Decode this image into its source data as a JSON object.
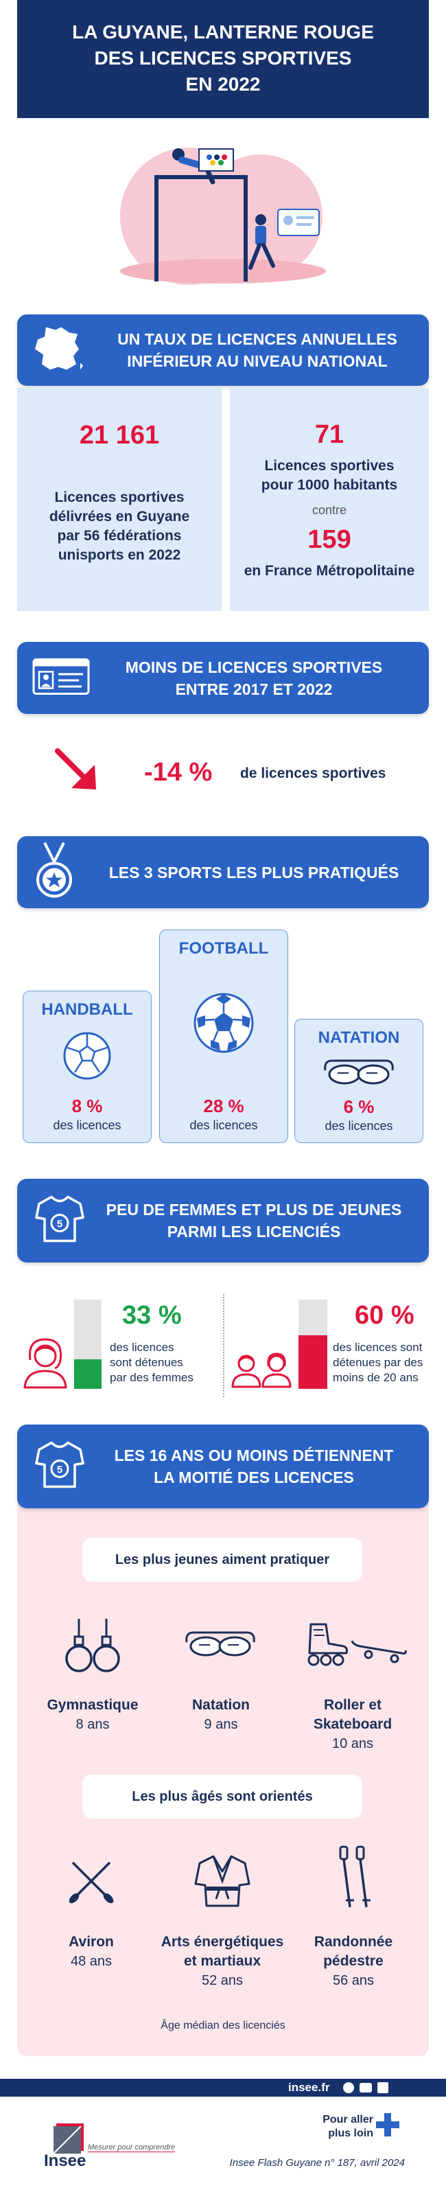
{
  "title": {
    "line1": "LA GUYANE, LANTERNE ROUGE",
    "line2": "DES LICENCES SPORTIVES",
    "line3": "EN 2022"
  },
  "section1": {
    "heading_line1": "UN TAUX DE LICENCES ANNUELLES",
    "heading_line2": "INFÉRIEUR AU NIVEAU NATIONAL",
    "left_number": "21 161",
    "left_text_line1": "Licences sportives",
    "left_text_line2": "délivrées en Guyane",
    "left_text_line3": "par 56 fédérations",
    "left_text_line4": "unisports en 2022",
    "right_number": "71",
    "right_text_line1": "Licences sportives",
    "right_text_line2": "pour 1000 habitants",
    "contre": "contre",
    "right_number2": "159",
    "right_text2": "en France Métropolitaine"
  },
  "section2": {
    "heading_line1": "MOINS DE LICENCES SPORTIVES",
    "heading_line2": "ENTRE 2017 ET 2022",
    "change_value": "-14 %",
    "change_text": "de licences sportives"
  },
  "section3": {
    "heading": "LES 3 SPORTS LES PLUS PRATIQUÉS",
    "sports": [
      {
        "name": "HANDBALL",
        "pct": "8 %",
        "sub": "des licences"
      },
      {
        "name": "FOOTBALL",
        "pct": "28 %",
        "sub": "des licences"
      },
      {
        "name": "NATATION",
        "pct": "6 %",
        "sub": "des licences"
      }
    ]
  },
  "section4": {
    "heading_line1": "PEU DE FEMMES ET PLUS DE JEUNES",
    "heading_line2": "PARMI LES LICENCIÉS",
    "women_pct": "33 %",
    "women_share": 0.33,
    "women_text_line1": "des licences",
    "women_text_line2": "sont détenues",
    "women_text_line3": "par des femmes",
    "young_pct": "60 %",
    "young_share": 0.6,
    "young_text_line1": "des licences sont",
    "young_text_line2": "détenues par des",
    "young_text_line3": "moins de 20 ans",
    "color_green": "#1ba24a",
    "color_red": "#e0143c"
  },
  "section5": {
    "heading_line1": "LES 16 ANS OU MOINS DÉTIENNENT",
    "heading_line2": "LA MOITIÉ DES LICENCES",
    "young_pill": "Les plus jeunes aiment pratiquer",
    "young_sports": [
      {
        "name_line1": "Gymnastique",
        "name_line2": "",
        "age": "8 ans"
      },
      {
        "name_line1": "Natation",
        "name_line2": "",
        "age": "9 ans"
      },
      {
        "name_line1": "Roller et",
        "name_line2": "Skateboard",
        "age": "10 ans"
      }
    ],
    "old_pill": "Les plus âgés sont orientés",
    "old_sports": [
      {
        "name_line1": "Aviron",
        "name_line2": "",
        "age": "48 ans"
      },
      {
        "name_line1": "Arts énergétiques",
        "name_line2": "et martiaux",
        "age": "52 ans"
      },
      {
        "name_line1": "Randonnée",
        "name_line2": "pédestre",
        "age": "56 ans"
      }
    ],
    "footnote": "Âge médian des licenciés"
  },
  "footer": {
    "site": "insee.fr",
    "logo_text": "Insee",
    "tagline": "Mesurer pour comprendre",
    "more_line1": "Pour aller",
    "more_line2": "plus loin",
    "publication": "Insee Flash Guyane n° 187, avril 2024"
  },
  "colors": {
    "banner_blue": "#2a63c4",
    "navy": "#17316b",
    "light_blue": "#ddeafa",
    "pink_panel": "#fde6ea",
    "red": "#e0143c"
  }
}
